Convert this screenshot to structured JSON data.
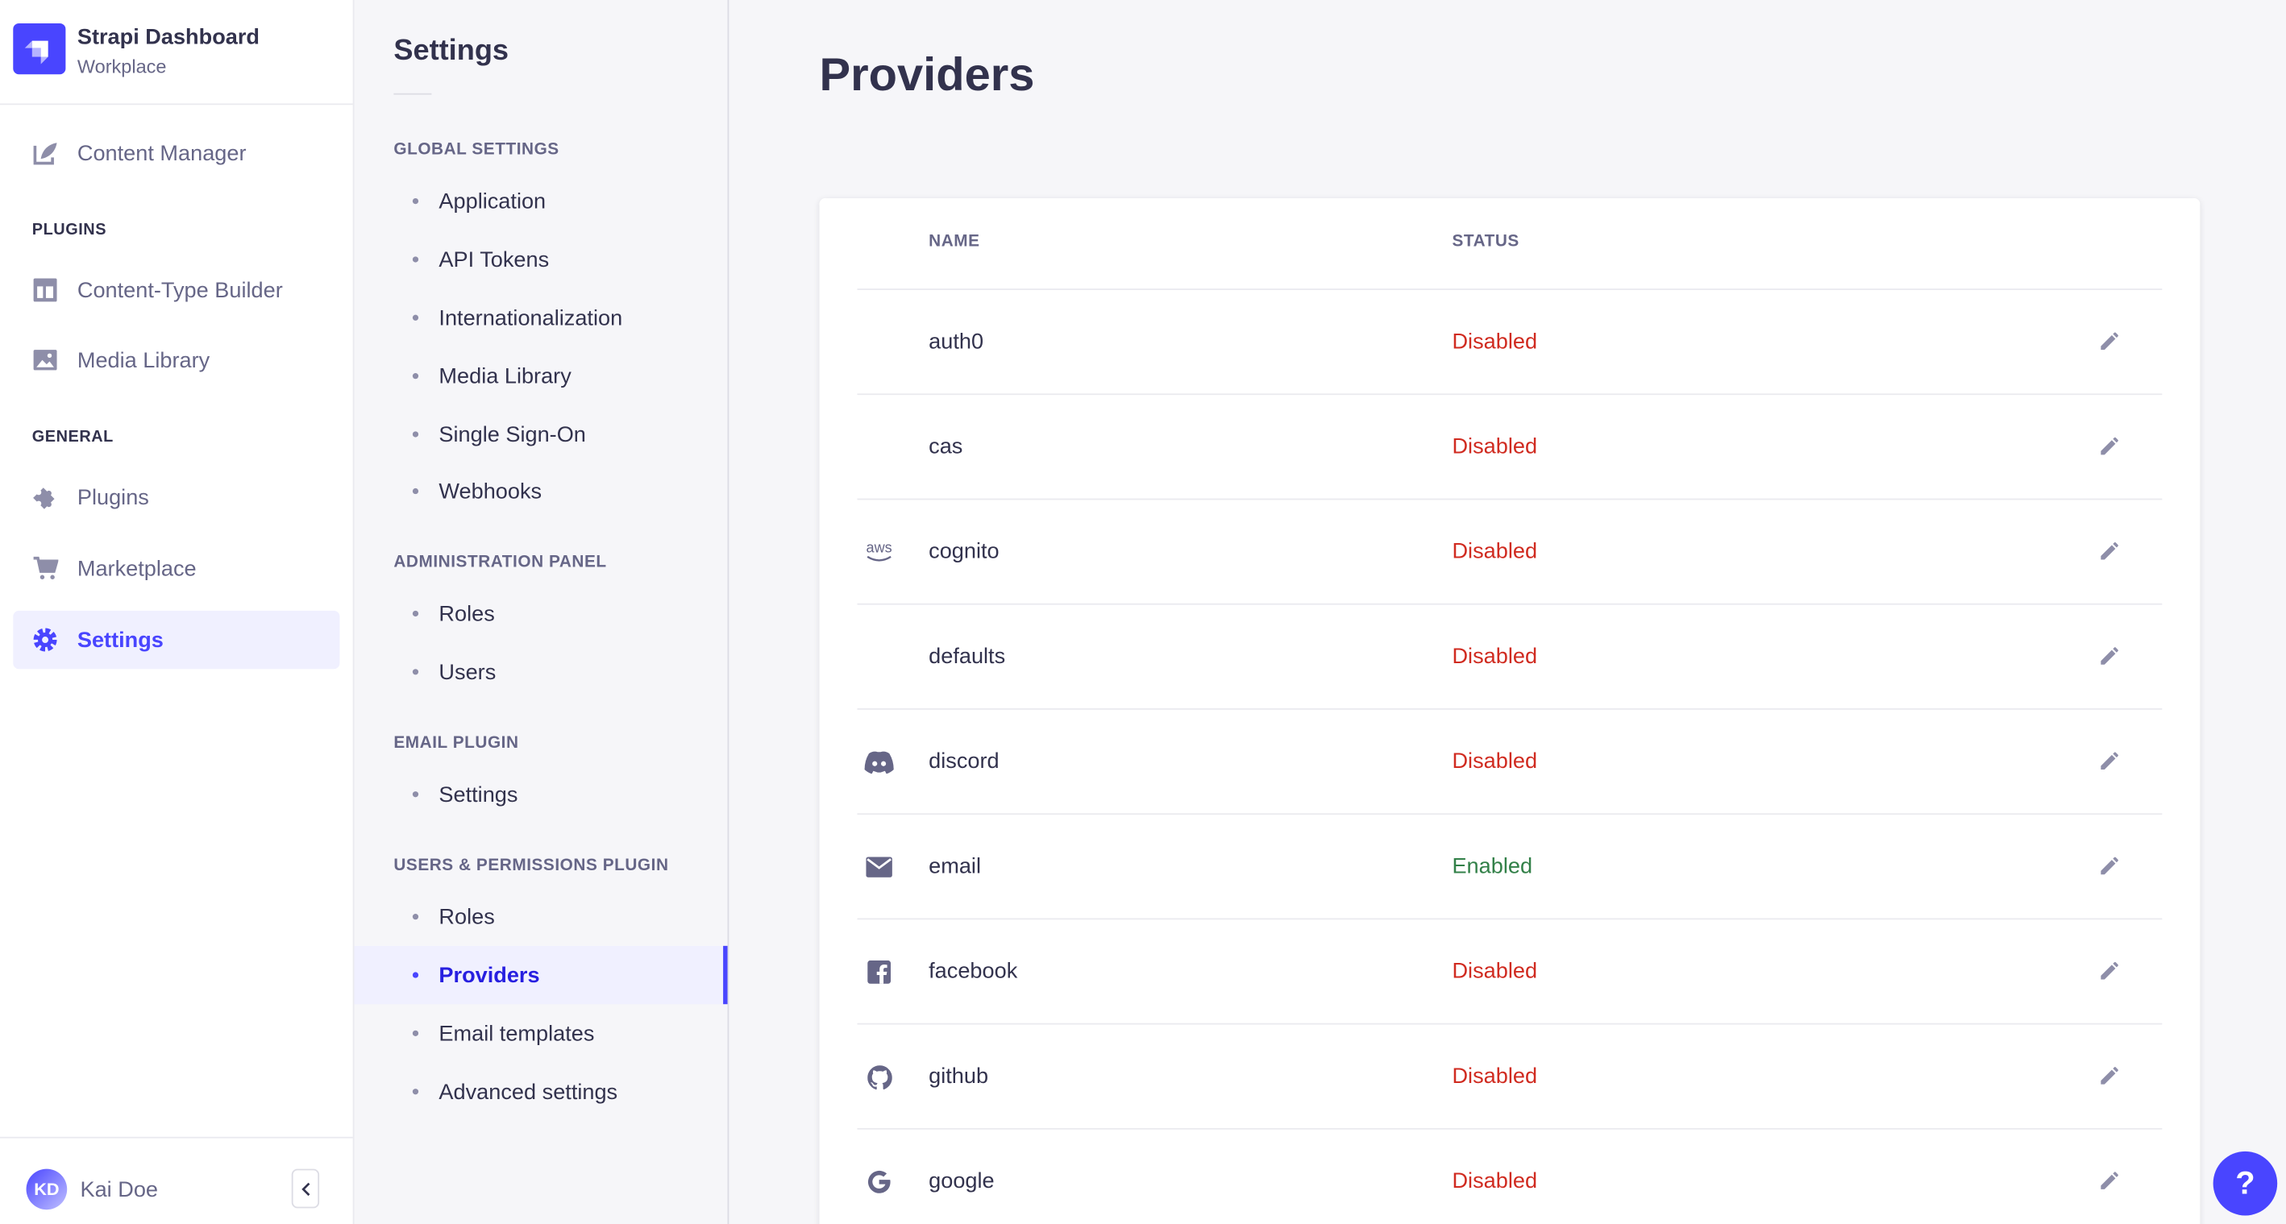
{
  "app": {
    "title": "Strapi Dashboard",
    "subtitle": "Workplace",
    "brand_color": "#4945ff"
  },
  "nav": {
    "content_manager": "Content Manager",
    "plugins_heading": "PLUGINS",
    "content_type_builder": "Content-Type Builder",
    "media_library": "Media Library",
    "general_heading": "GENERAL",
    "plugins": "Plugins",
    "marketplace": "Marketplace",
    "settings": "Settings",
    "user": {
      "initials": "KD",
      "name": "Kai Doe"
    }
  },
  "settings_nav": {
    "title": "Settings",
    "sections": [
      {
        "heading": "GLOBAL SETTINGS",
        "items": [
          "Application",
          "API Tokens",
          "Internationalization",
          "Media Library",
          "Single Sign-On",
          "Webhooks"
        ]
      },
      {
        "heading": "ADMINISTRATION PANEL",
        "items": [
          "Roles",
          "Users"
        ]
      },
      {
        "heading": "EMAIL PLUGIN",
        "items": [
          "Settings"
        ]
      },
      {
        "heading": "USERS & PERMISSIONS PLUGIN",
        "items": [
          "Roles",
          "Providers",
          "Email templates",
          "Advanced settings"
        ]
      }
    ],
    "active": "Providers"
  },
  "main": {
    "title": "Providers",
    "columns": {
      "name": "NAME",
      "status": "STATUS"
    },
    "rows": [
      {
        "icon": "none",
        "name": "auth0",
        "status": "Disabled"
      },
      {
        "icon": "none",
        "name": "cas",
        "status": "Disabled"
      },
      {
        "icon": "aws-icon",
        "name": "cognito",
        "status": "Disabled"
      },
      {
        "icon": "none",
        "name": "defaults",
        "status": "Disabled"
      },
      {
        "icon": "discord-icon",
        "name": "discord",
        "status": "Disabled"
      },
      {
        "icon": "mail-icon",
        "name": "email",
        "status": "Enabled"
      },
      {
        "icon": "facebook-icon",
        "name": "facebook",
        "status": "Disabled"
      },
      {
        "icon": "github-icon",
        "name": "github",
        "status": "Disabled"
      },
      {
        "icon": "google-icon",
        "name": "google",
        "status": "Disabled"
      }
    ],
    "status_colors": {
      "Disabled": "#d02b20",
      "Enabled": "#328048"
    },
    "aws_label": "aws"
  },
  "help": {
    "label": "?"
  }
}
